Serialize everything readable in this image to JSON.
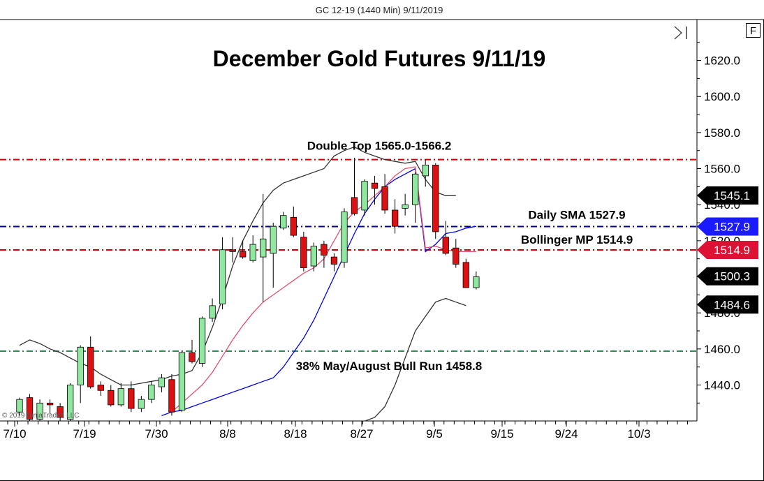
{
  "header": "GC 12-19 (1440 Min)  9/11/2019",
  "chart_data": {
    "type": "candlestick",
    "title": "December Gold Futures 9/11/19",
    "ylim": [
      1420,
      1640
    ],
    "y_ticks": [
      1440,
      1460,
      1480,
      1500,
      1520,
      1540,
      1560,
      1580,
      1600,
      1620
    ],
    "y_tick_labels": [
      "1440.0",
      "1460.0",
      "1480.0",
      "1500.0",
      "1520.0",
      "1540.0",
      "1560.0",
      "1580.0",
      "1600.0",
      "1620.0"
    ],
    "x_tick_labels": [
      "7/10",
      "7/19",
      "7/30",
      "8/8",
      "8/18",
      "8/27",
      "9/5",
      "9/15",
      "9/24",
      "10/3"
    ],
    "bars": [
      {
        "o": 1425,
        "h": 1433,
        "l": 1423,
        "c": 1432
      },
      {
        "o": 1433,
        "h": 1435,
        "l": 1420,
        "c": 1421
      },
      {
        "o": 1421,
        "h": 1432,
        "l": 1420,
        "c": 1430
      },
      {
        "o": 1430,
        "h": 1432,
        "l": 1424,
        "c": 1429
      },
      {
        "o": 1428,
        "h": 1430,
        "l": 1420,
        "c": 1422
      },
      {
        "o": 1421,
        "h": 1441,
        "l": 1420,
        "c": 1440
      },
      {
        "o": 1440,
        "h": 1462,
        "l": 1430,
        "c": 1461
      },
      {
        "o": 1461,
        "h": 1467,
        "l": 1438,
        "c": 1439
      },
      {
        "o": 1440,
        "h": 1442,
        "l": 1434,
        "c": 1437
      },
      {
        "o": 1437,
        "h": 1440,
        "l": 1428,
        "c": 1429
      },
      {
        "o": 1429,
        "h": 1441,
        "l": 1428,
        "c": 1438
      },
      {
        "o": 1438,
        "h": 1442,
        "l": 1425,
        "c": 1427
      },
      {
        "o": 1427,
        "h": 1434,
        "l": 1425,
        "c": 1432
      },
      {
        "o": 1432,
        "h": 1442,
        "l": 1430,
        "c": 1440
      },
      {
        "o": 1439,
        "h": 1446,
        "l": 1436,
        "c": 1444
      },
      {
        "o": 1443,
        "h": 1446,
        "l": 1423,
        "c": 1425
      },
      {
        "o": 1426,
        "h": 1459,
        "l": 1425,
        "c": 1458
      },
      {
        "o": 1458,
        "h": 1465,
        "l": 1452,
        "c": 1453
      },
      {
        "o": 1452,
        "h": 1478,
        "l": 1450,
        "c": 1477
      },
      {
        "o": 1477,
        "h": 1488,
        "l": 1475,
        "c": 1484
      },
      {
        "o": 1485,
        "h": 1522,
        "l": 1482,
        "c": 1515
      },
      {
        "o": 1515,
        "h": 1522,
        "l": 1508,
        "c": 1514
      },
      {
        "o": 1514,
        "h": 1520,
        "l": 1510,
        "c": 1511
      },
      {
        "o": 1509,
        "h": 1523,
        "l": 1508,
        "c": 1518
      },
      {
        "o": 1511,
        "h": 1546,
        "l": 1486,
        "c": 1521
      },
      {
        "o": 1513,
        "h": 1530,
        "l": 1494,
        "c": 1528
      },
      {
        "o": 1527,
        "h": 1536,
        "l": 1526,
        "c": 1534
      },
      {
        "o": 1533,
        "h": 1539,
        "l": 1522,
        "c": 1523
      },
      {
        "o": 1522,
        "h": 1525,
        "l": 1503,
        "c": 1505
      },
      {
        "o": 1506,
        "h": 1519,
        "l": 1503,
        "c": 1517
      },
      {
        "o": 1518,
        "h": 1520,
        "l": 1505,
        "c": 1512
      },
      {
        "o": 1511,
        "h": 1513,
        "l": 1503,
        "c": 1507
      },
      {
        "o": 1508,
        "h": 1538,
        "l": 1505,
        "c": 1536
      },
      {
        "o": 1544,
        "h": 1566,
        "l": 1534,
        "c": 1535
      },
      {
        "o": 1537,
        "h": 1554,
        "l": 1534,
        "c": 1553
      },
      {
        "o": 1552,
        "h": 1556,
        "l": 1540,
        "c": 1549
      },
      {
        "o": 1550,
        "h": 1557,
        "l": 1535,
        "c": 1537
      },
      {
        "o": 1537,
        "h": 1543,
        "l": 1524,
        "c": 1528
      },
      {
        "o": 1538,
        "h": 1546,
        "l": 1534,
        "c": 1540
      },
      {
        "o": 1540,
        "h": 1558,
        "l": 1530,
        "c": 1557
      },
      {
        "o": 1556,
        "h": 1565,
        "l": 1550,
        "c": 1562
      },
      {
        "o": 1562,
        "h": 1563,
        "l": 1521,
        "c": 1525
      },
      {
        "o": 1522,
        "h": 1531,
        "l": 1512,
        "c": 1513
      },
      {
        "o": 1516,
        "h": 1521,
        "l": 1505,
        "c": 1507
      },
      {
        "o": 1508,
        "h": 1510,
        "l": 1494,
        "c": 1494
      },
      {
        "o": 1494,
        "h": 1503,
        "l": 1493,
        "c": 1500
      }
    ],
    "series": [
      {
        "type": "line",
        "color": "#0000ee",
        "values": [
          null,
          null,
          null,
          null,
          null,
          null,
          null,
          null,
          null,
          null,
          null,
          null,
          null,
          null,
          1423,
          1425,
          1426,
          1428,
          1430,
          1432,
          1434,
          1436,
          1438,
          1440,
          1442,
          1444,
          1450,
          1458,
          1466,
          1476,
          1488,
          1500,
          1512,
          1524,
          1535,
          1543,
          1550,
          1554,
          1557,
          1560,
          1514,
          1518,
          1524,
          1525,
          1527,
          1528
        ]
      },
      {
        "type": "line",
        "color": "#e05070",
        "values": [
          null,
          null,
          null,
          null,
          null,
          null,
          null,
          null,
          null,
          null,
          null,
          null,
          null,
          null,
          null,
          1425,
          1430,
          1435,
          1440,
          1447,
          1456,
          1465,
          1473,
          1480,
          1486,
          1490,
          1494,
          1498,
          1502,
          1505,
          1510,
          1520,
          1530,
          1536,
          1540,
          1545,
          1550,
          1556,
          1560,
          1561,
          1516,
          1517,
          1515,
          1514,
          1514,
          1514
        ]
      },
      {
        "type": "line",
        "color": "#333333",
        "values": [
          1462,
          1465,
          1463,
          1460,
          1458,
          1455,
          1452,
          1450,
          1446,
          1443,
          1440,
          1440,
          1441,
          1442,
          1443,
          1445,
          1446,
          1448,
          1458,
          1472,
          1488,
          1506,
          1520,
          1531,
          1541,
          1548,
          1552,
          1554,
          1556,
          1558,
          1560,
          1567,
          1570,
          1572,
          1569,
          1567,
          1565,
          1564,
          1563,
          1564,
          1554,
          1547,
          1545,
          1545,
          null,
          null
        ]
      },
      {
        "type": "line",
        "color": "#333333",
        "values": [
          null,
          null,
          null,
          null,
          null,
          null,
          null,
          null,
          null,
          null,
          null,
          null,
          null,
          null,
          null,
          null,
          null,
          null,
          null,
          null,
          null,
          null,
          null,
          null,
          null,
          null,
          null,
          null,
          null,
          null,
          null,
          null,
          null,
          null,
          1420,
          1422,
          1428,
          1440,
          1455,
          1470,
          1478,
          1486,
          1488,
          1486,
          1484,
          null
        ]
      }
    ],
    "levels": [
      {
        "value": 1565.0,
        "label": "Double Top 1565.0-1566.2",
        "color": "#cc0000"
      },
      {
        "value": 1527.9,
        "label": "Daily SMA 1527.9",
        "color": "#000080"
      },
      {
        "value": 1514.9,
        "label": "Bollinger MP 1514.9",
        "color": "#cc0000"
      },
      {
        "value": 1458.8,
        "label": "38% May/August Bull Run 1458.8",
        "color": "#2a8a5a"
      }
    ],
    "price_badges": [
      {
        "value": 1545.1,
        "text": "1545.1",
        "bg": "#000000",
        "fg": "#ffffff"
      },
      {
        "value": 1527.9,
        "text": "1527.9",
        "bg": "#1a1aff",
        "fg": "#ffffff"
      },
      {
        "value": 1514.9,
        "text": "1514.9",
        "bg": "#dd1133",
        "fg": "#ffffff"
      },
      {
        "value": 1500.3,
        "text": "1500.3",
        "bg": "#000000",
        "fg": "#ffffff"
      },
      {
        "value": 1484.6,
        "text": "1484.6",
        "bg": "#000000",
        "fg": "#ffffff"
      }
    ],
    "candle_colors": {
      "up": "#90e8a0",
      "down": "#dd1111"
    },
    "grid": false
  },
  "watermark": "© 2019 NinjaTrader, LLC",
  "corner_button": "F"
}
